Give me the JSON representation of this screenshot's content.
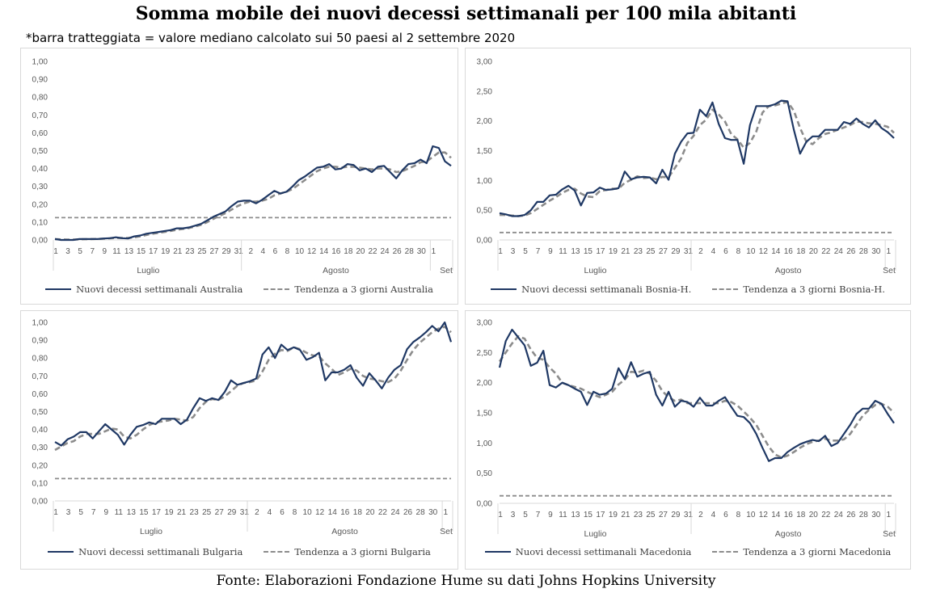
{
  "title": "Somma mobile dei nuovi decessi settimanali per 100 mila abitanti",
  "note": "*barra tratteggiata = valore mediano calcolato sui 50 paesi al 2 settembre 2020",
  "source": "Fonte: Elaborazioni Fondazione Hume su dati Johns Hopkins University",
  "colors": {
    "actual": "#1f3864",
    "trend": "#8c8c8c",
    "median": "#8c8c8c"
  },
  "chart_data": [
    {
      "type": "line",
      "x_tick_labels": [
        "1",
        "3",
        "5",
        "7",
        "9",
        "11",
        "13",
        "15",
        "17",
        "19",
        "21",
        "23",
        "25",
        "27",
        "29",
        "31",
        "2",
        "4",
        "6",
        "8",
        "10",
        "12",
        "14",
        "16",
        "18",
        "20",
        "22",
        "24",
        "26",
        "28",
        "30",
        "1"
      ],
      "month_labels": [
        "Luglio",
        "Agosto",
        "Set"
      ],
      "ylim": [
        0,
        1
      ],
      "yticks": [
        "0,00",
        "0,10",
        "0,20",
        "0,30",
        "0,40",
        "0,50",
        "0,60",
        "0,70",
        "0,80",
        "0,90",
        "1,00"
      ],
      "median_line": 0.125,
      "series": [
        {
          "name": "Nuovi decessi settimanali Australia",
          "style": "solid",
          "values": [
            0.005,
            0.0,
            0.0,
            0.0,
            0.005,
            0.005,
            0.005,
            0.005,
            0.008,
            0.01,
            0.015,
            0.01,
            0.008,
            0.02,
            0.025,
            0.035,
            0.04,
            0.045,
            0.05,
            0.055,
            0.065,
            0.065,
            0.07,
            0.08,
            0.09,
            0.11,
            0.13,
            0.145,
            0.16,
            0.19,
            0.215,
            0.22,
            0.22,
            0.205,
            0.225,
            0.25,
            0.275,
            0.26,
            0.27,
            0.3,
            0.335,
            0.355,
            0.38,
            0.405,
            0.41,
            0.425,
            0.395,
            0.4,
            0.425,
            0.42,
            0.39,
            0.4,
            0.38,
            0.41,
            0.415,
            0.38,
            0.345,
            0.39,
            0.425,
            0.43,
            0.45,
            0.43,
            0.525,
            0.515,
            0.44,
            0.415
          ]
        },
        {
          "name": "Tendenza a 3 giorni Australia",
          "style": "dashed",
          "values": [
            0.005,
            0.003,
            0.002,
            0.002,
            0.003,
            0.004,
            0.005,
            0.006,
            0.007,
            0.009,
            0.011,
            0.011,
            0.011,
            0.015,
            0.02,
            0.028,
            0.035,
            0.04,
            0.045,
            0.05,
            0.057,
            0.062,
            0.067,
            0.075,
            0.085,
            0.1,
            0.118,
            0.135,
            0.15,
            0.17,
            0.19,
            0.205,
            0.215,
            0.215,
            0.22,
            0.23,
            0.25,
            0.26,
            0.27,
            0.285,
            0.31,
            0.335,
            0.36,
            0.385,
            0.4,
            0.41,
            0.41,
            0.405,
            0.41,
            0.41,
            0.405,
            0.4,
            0.395,
            0.4,
            0.4,
            0.395,
            0.38,
            0.385,
            0.4,
            0.415,
            0.435,
            0.44,
            0.465,
            0.49,
            0.49,
            0.46
          ]
        }
      ]
    },
    {
      "type": "line",
      "x_tick_labels": [
        "1",
        "3",
        "5",
        "7",
        "9",
        "11",
        "13",
        "15",
        "17",
        "19",
        "21",
        "23",
        "25",
        "27",
        "29",
        "31",
        "2",
        "4",
        "6",
        "8",
        "10",
        "12",
        "14",
        "16",
        "18",
        "20",
        "22",
        "24",
        "26",
        "28",
        "30",
        "1"
      ],
      "month_labels": [
        "Luglio",
        "Agosto",
        "Set"
      ],
      "ylim": [
        0,
        3
      ],
      "yticks": [
        "0,00",
        "0,50",
        "1,00",
        "1,50",
        "2,00",
        "2,50",
        "3,00"
      ],
      "median_line": 0.125,
      "series": [
        {
          "name": "Nuovi decessi settimanali Bosnia-H.",
          "style": "solid",
          "values": [
            0.45,
            0.43,
            0.4,
            0.4,
            0.42,
            0.5,
            0.64,
            0.64,
            0.75,
            0.76,
            0.85,
            0.91,
            0.83,
            0.58,
            0.79,
            0.8,
            0.88,
            0.84,
            0.85,
            0.87,
            1.15,
            1.02,
            1.05,
            1.06,
            1.05,
            0.95,
            1.18,
            1.01,
            1.45,
            1.65,
            1.79,
            1.8,
            2.19,
            2.08,
            2.31,
            1.95,
            1.71,
            1.68,
            1.68,
            1.28,
            1.93,
            2.25,
            2.25,
            2.25,
            2.28,
            2.34,
            2.33,
            1.85,
            1.45,
            1.65,
            1.74,
            1.74,
            1.85,
            1.85,
            1.85,
            1.98,
            1.95,
            2.04,
            1.95,
            1.89,
            2.01,
            1.88,
            1.81,
            1.71
          ]
        },
        {
          "name": "Tendenza a 3 giorni Bosnia-H.",
          "style": "dashed",
          "values": [
            0.42,
            0.42,
            0.41,
            0.4,
            0.41,
            0.45,
            0.52,
            0.59,
            0.66,
            0.72,
            0.79,
            0.84,
            0.86,
            0.78,
            0.73,
            0.72,
            0.82,
            0.84,
            0.86,
            0.86,
            0.96,
            1.01,
            1.07,
            1.04,
            1.05,
            1.02,
            1.06,
            1.05,
            1.21,
            1.37,
            1.63,
            1.75,
            1.93,
            2.02,
            2.19,
            2.11,
            1.99,
            1.78,
            1.69,
            1.55,
            1.63,
            1.82,
            2.14,
            2.25,
            2.26,
            2.29,
            2.32,
            2.17,
            1.88,
            1.65,
            1.61,
            1.71,
            1.78,
            1.81,
            1.85,
            1.89,
            1.93,
            1.99,
            1.98,
            1.96,
            1.95,
            1.93,
            1.9,
            1.8
          ]
        }
      ]
    },
    {
      "type": "line",
      "x_tick_labels": [
        "1",
        "3",
        "5",
        "7",
        "9",
        "11",
        "13",
        "15",
        "17",
        "19",
        "21",
        "23",
        "25",
        "27",
        "29",
        "31",
        "2",
        "4",
        "6",
        "8",
        "10",
        "12",
        "14",
        "16",
        "18",
        "20",
        "22",
        "24",
        "26",
        "28",
        "30",
        "1"
      ],
      "month_labels": [
        "Luglio",
        "Agosto",
        "Set"
      ],
      "ylim": [
        0,
        1
      ],
      "yticks": [
        "0,00",
        "0,10",
        "0,20",
        "0,30",
        "0,40",
        "0,50",
        "0,60",
        "0,70",
        "0,80",
        "0,90",
        "1,00"
      ],
      "median_line": 0.125,
      "series": [
        {
          "name": "Nuovi decessi settimanali Bulgaria",
          "style": "solid",
          "values": [
            0.33,
            0.31,
            0.345,
            0.36,
            0.385,
            0.385,
            0.35,
            0.39,
            0.43,
            0.4,
            0.37,
            0.315,
            0.37,
            0.415,
            0.425,
            0.44,
            0.43,
            0.46,
            0.46,
            0.46,
            0.43,
            0.455,
            0.52,
            0.575,
            0.56,
            0.575,
            0.565,
            0.61,
            0.675,
            0.65,
            0.66,
            0.67,
            0.685,
            0.82,
            0.86,
            0.8,
            0.875,
            0.845,
            0.86,
            0.845,
            0.79,
            0.805,
            0.83,
            0.675,
            0.72,
            0.72,
            0.735,
            0.76,
            0.69,
            0.645,
            0.715,
            0.675,
            0.63,
            0.69,
            0.735,
            0.76,
            0.85,
            0.89,
            0.915,
            0.945,
            0.98,
            0.95,
            1.0,
            0.89
          ]
        },
        {
          "name": "Tendenza a 3 giorni Bulgaria",
          "style": "dashed",
          "values": [
            0.285,
            0.305,
            0.325,
            0.335,
            0.36,
            0.375,
            0.375,
            0.375,
            0.39,
            0.405,
            0.4,
            0.36,
            0.35,
            0.37,
            0.4,
            0.425,
            0.44,
            0.445,
            0.45,
            0.46,
            0.455,
            0.45,
            0.47,
            0.52,
            0.555,
            0.57,
            0.565,
            0.585,
            0.615,
            0.645,
            0.66,
            0.665,
            0.675,
            0.725,
            0.79,
            0.825,
            0.845,
            0.84,
            0.86,
            0.85,
            0.83,
            0.815,
            0.81,
            0.77,
            0.74,
            0.705,
            0.72,
            0.74,
            0.73,
            0.7,
            0.685,
            0.68,
            0.67,
            0.665,
            0.685,
            0.73,
            0.79,
            0.845,
            0.885,
            0.915,
            0.945,
            0.965,
            0.975,
            0.945
          ]
        }
      ]
    },
    {
      "type": "line",
      "x_tick_labels": [
        "1",
        "3",
        "5",
        "7",
        "9",
        "11",
        "13",
        "15",
        "17",
        "19",
        "21",
        "23",
        "25",
        "27",
        "29",
        "31",
        "2",
        "4",
        "6",
        "8",
        "10",
        "12",
        "14",
        "16",
        "18",
        "20",
        "22",
        "24",
        "26",
        "28",
        "30",
        "1"
      ],
      "month_labels": [
        "Luglio",
        "Agosto",
        "Set"
      ],
      "ylim": [
        0,
        3
      ],
      "yticks": [
        "0,00",
        "0,50",
        "1,00",
        "1,50",
        "2,00",
        "2,50",
        "3,00"
      ],
      "median_line": 0.125,
      "series": [
        {
          "name": "Nuovi decessi settimanali Macedonia",
          "style": "solid",
          "values": [
            2.25,
            2.69,
            2.88,
            2.75,
            2.62,
            2.28,
            2.33,
            2.53,
            1.96,
            1.92,
            2.0,
            1.96,
            1.9,
            1.85,
            1.63,
            1.85,
            1.8,
            1.82,
            1.9,
            2.24,
            2.06,
            2.34,
            2.1,
            2.15,
            2.18,
            1.8,
            1.62,
            1.85,
            1.6,
            1.7,
            1.68,
            1.6,
            1.75,
            1.62,
            1.62,
            1.7,
            1.76,
            1.6,
            1.45,
            1.43,
            1.33,
            1.15,
            0.92,
            0.7,
            0.75,
            0.75,
            0.85,
            0.92,
            0.98,
            1.02,
            1.05,
            1.03,
            1.12,
            0.95,
            1.0,
            1.15,
            1.3,
            1.48,
            1.57,
            1.57,
            1.7,
            1.65,
            1.48,
            1.33
          ]
        },
        {
          "name": "Tendenza a 3 giorni Macedonia",
          "style": "dashed",
          "values": [
            2.35,
            2.5,
            2.65,
            2.77,
            2.73,
            2.55,
            2.41,
            2.38,
            2.25,
            2.15,
            2.0,
            1.96,
            1.93,
            1.9,
            1.85,
            1.8,
            1.76,
            1.8,
            1.85,
            1.97,
            2.05,
            2.18,
            2.17,
            2.2,
            2.15,
            2.03,
            1.86,
            1.76,
            1.7,
            1.72,
            1.66,
            1.66,
            1.66,
            1.66,
            1.66,
            1.66,
            1.7,
            1.68,
            1.62,
            1.52,
            1.42,
            1.3,
            1.12,
            0.94,
            0.81,
            0.76,
            0.79,
            0.85,
            0.92,
            0.98,
            1.02,
            1.04,
            1.07,
            1.04,
            1.04,
            1.06,
            1.15,
            1.3,
            1.45,
            1.55,
            1.63,
            1.65,
            1.6,
            1.5
          ]
        }
      ]
    }
  ]
}
